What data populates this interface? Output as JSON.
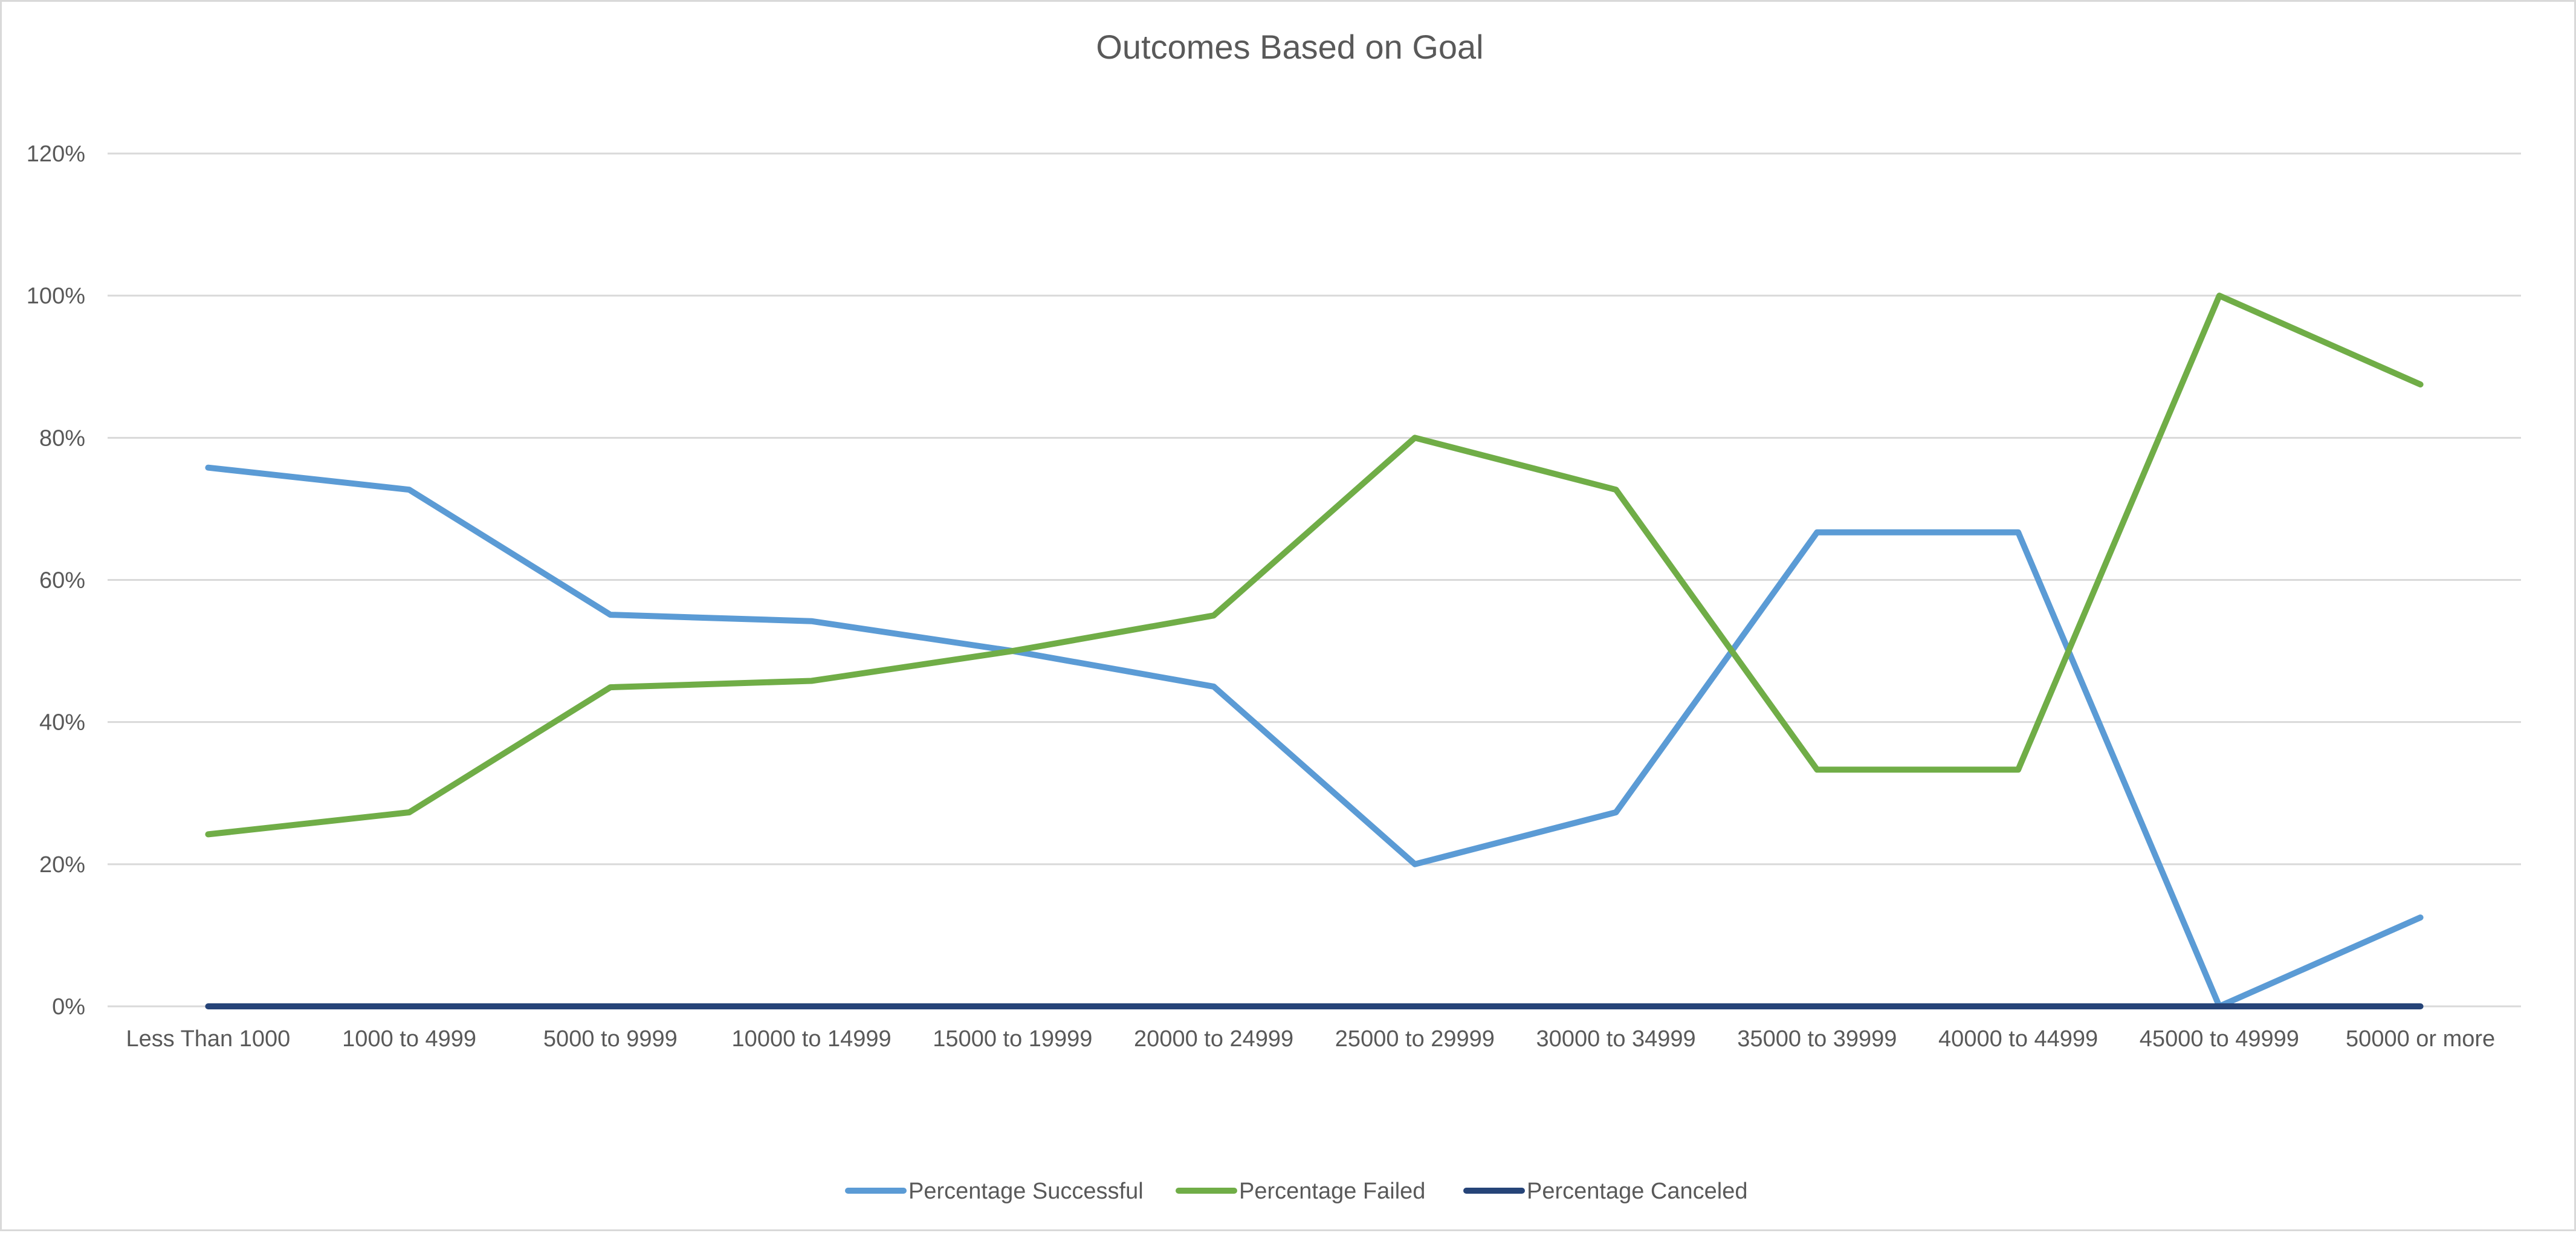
{
  "chart_data": {
    "type": "line",
    "title": "Outcomes Based on Goal",
    "xlabel": "",
    "ylabel": "",
    "categories": [
      "Less Than 1000",
      "1000 to 4999",
      "5000 to 9999",
      "10000 to 14999",
      "15000 to 19999",
      "20000 to 24999",
      "25000 to 29999",
      "30000 to 34999",
      "35000 to 39999",
      "40000 to 44999",
      "45000 to 49999",
      "50000 or more"
    ],
    "ylim": [
      0,
      1.2
    ],
    "yticks": [
      0,
      0.2,
      0.4,
      0.6,
      0.8,
      1.0,
      1.2
    ],
    "ytick_labels": [
      "0%",
      "20%",
      "40%",
      "60%",
      "80%",
      "100%",
      "120%"
    ],
    "grid": true,
    "legend": "bottom",
    "series": [
      {
        "name": "Percentage Successful",
        "color": "#5b9bd5",
        "values": [
          0.758,
          0.727,
          0.551,
          0.542,
          0.5,
          0.45,
          0.2,
          0.273,
          0.667,
          0.667,
          0.0,
          0.125
        ]
      },
      {
        "name": "Percentage Failed",
        "color": "#70ad47",
        "values": [
          0.242,
          0.273,
          0.449,
          0.458,
          0.5,
          0.55,
          0.8,
          0.727,
          0.333,
          0.333,
          1.0,
          0.875
        ]
      },
      {
        "name": "Percentage Canceled",
        "color": "#264478",
        "values": [
          0,
          0,
          0,
          0,
          0,
          0,
          0,
          0,
          0,
          0,
          0,
          0
        ]
      }
    ]
  }
}
